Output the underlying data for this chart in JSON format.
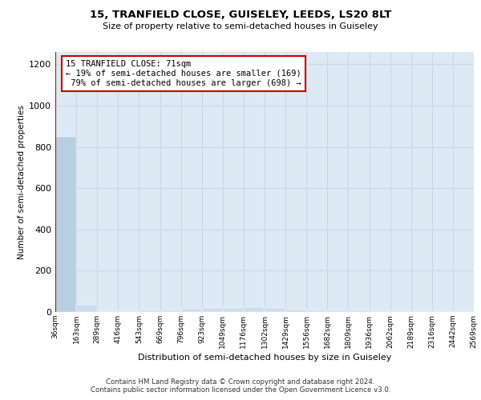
{
  "title1": "15, TRANFIELD CLOSE, GUISELEY, LEEDS, LS20 8LT",
  "title2": "Size of property relative to semi-detached houses in Guiseley",
  "xlabel": "Distribution of semi-detached houses by size in Guiseley",
  "ylabel": "Number of semi-detached properties",
  "footer1": "Contains HM Land Registry data © Crown copyright and database right 2024.",
  "footer2": "Contains public sector information licensed under the Open Government Licence v3.0.",
  "annotation_line1": "15 TRANFIELD CLOSE: 71sqm",
  "annotation_line2": "← 19% of semi-detached houses are smaller (169)",
  "annotation_line3": " 79% of semi-detached houses are larger (698) →",
  "bar_heights": [
    848,
    35,
    3,
    3,
    6,
    9,
    16,
    21,
    19,
    23,
    18,
    13,
    9,
    7,
    6,
    4,
    3,
    3,
    2,
    2
  ],
  "tick_labels": [
    "36sqm",
    "163sqm",
    "289sqm",
    "416sqm",
    "543sqm",
    "669sqm",
    "796sqm",
    "923sqm",
    "1049sqm",
    "1176sqm",
    "1302sqm",
    "1429sqm",
    "1556sqm",
    "1682sqm",
    "1809sqm",
    "1936sqm",
    "2062sqm",
    "2189sqm",
    "2316sqm",
    "2442sqm",
    "2569sqm"
  ],
  "highlighted_bar_index": 0,
  "highlight_color": "#b8cfe0",
  "normal_color": "#ccdded",
  "annotation_box_color": "#ffffff",
  "annotation_border_color": "#cc0000",
  "red_line_color": "#cc0000",
  "ylim": [
    0,
    1260
  ],
  "yticks": [
    0,
    200,
    400,
    600,
    800,
    1000,
    1200
  ],
  "grid_color": "#c8d8e4",
  "bg_color": "#ddeaf4"
}
